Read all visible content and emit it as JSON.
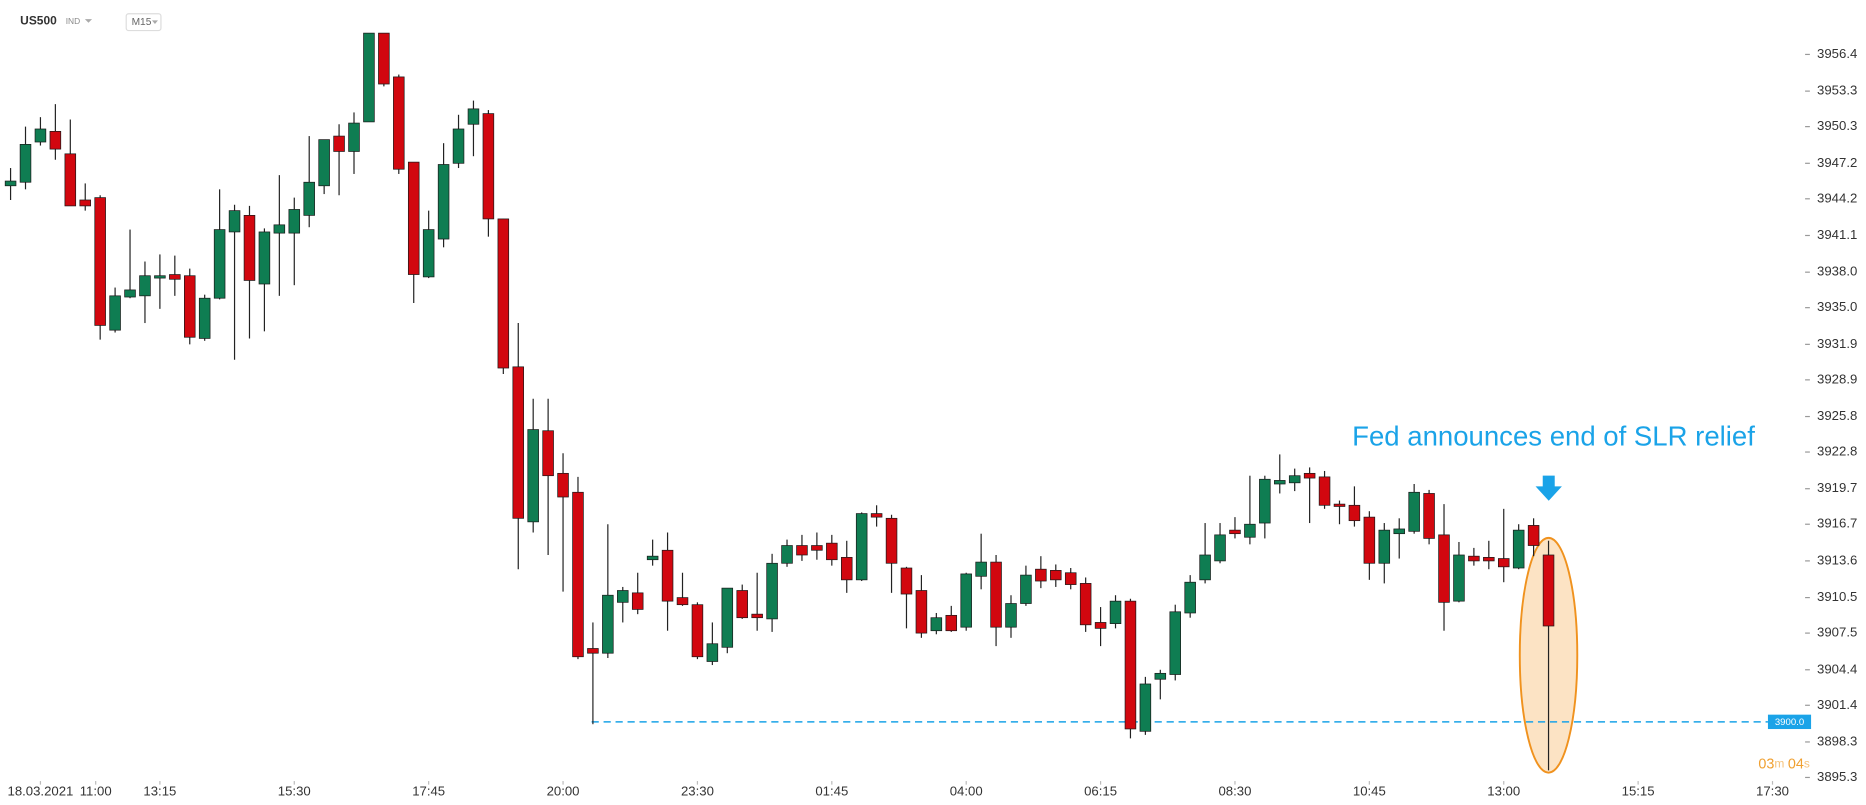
{
  "header": {
    "symbol": "US500",
    "market": "IND",
    "timeframe": "M15"
  },
  "chart_data": {
    "type": "candlestick",
    "annotation": "Fed announces end of SLR relief",
    "up_color": "#0f7d52",
    "down_color": "#d2070f",
    "open": [
      3945.3,
      3945.6,
      3949.0,
      3949.9,
      3948.0,
      3944.1,
      3944.3,
      3933.1,
      3935.9,
      3936.0,
      3937.5,
      3937.8,
      3937.7,
      3932.4,
      3935.8,
      3941.4,
      3942.8,
      3937.0,
      3941.3,
      3941.3,
      3942.8,
      3945.3,
      3949.5,
      3948.2,
      3950.7,
      3958.2,
      3954.5,
      3947.3,
      3937.6,
      3940.8,
      3947.2,
      3950.5,
      3951.4,
      3942.5,
      3930.0,
      3916.9,
      3924.6,
      3921.0,
      3919.4,
      3906.2,
      3905.8,
      3910.1,
      3910.9,
      3913.7,
      3914.5,
      3910.5,
      3909.9,
      3905.1,
      3906.3,
      3911.1,
      3909.1,
      3908.7,
      3913.4,
      3914.9,
      3914.9,
      3915.1,
      3913.9,
      3912.0,
      3917.6,
      3917.2,
      3913.0,
      3911.1,
      3907.7,
      3909.0,
      3908.0,
      3912.3,
      3913.5,
      3908.0,
      3910.0,
      3912.9,
      3912.8,
      3912.6,
      3911.7,
      3908.4,
      3908.3,
      3910.2,
      3899.2,
      3903.6,
      3904.0,
      3909.2,
      3912.0,
      3913.6,
      3916.2,
      3915.6,
      3916.8,
      3920.1,
      3920.2,
      3921.0,
      3920.7,
      3918.4,
      3918.3,
      3917.3,
      3913.4,
      3915.9,
      3916.1,
      3919.3,
      3915.8,
      3910.2,
      3914.0,
      3913.9,
      3913.8,
      3913.0,
      3916.6,
      3914.1
    ],
    "high": [
      3946.8,
      3950.3,
      3951.1,
      3952.2,
      3950.9,
      3945.5,
      3944.5,
      3936.7,
      3941.6,
      3938.9,
      3939.5,
      3939.4,
      3938.3,
      3936.1,
      3945.0,
      3943.7,
      3943.6,
      3941.7,
      3946.2,
      3944.3,
      3949.5,
      3949.2,
      3950.5,
      3951.5,
      3958.2,
      3958.2,
      3954.7,
      3947.3,
      3943.2,
      3948.9,
      3951.3,
      3952.5,
      3951.7,
      3942.5,
      3933.7,
      3927.3,
      3927.3,
      3922.7,
      3920.7,
      3908.4,
      3916.7,
      3911.4,
      3912.6,
      3915.4,
      3916.0,
      3912.6,
      3910.1,
      3908.4,
      3911.3,
      3911.6,
      3912.6,
      3914.2,
      3915.4,
      3915.8,
      3916.0,
      3915.8,
      3915.3,
      3917.7,
      3918.3,
      3917.5,
      3913.1,
      3912.4,
      3909.2,
      3909.8,
      3912.6,
      3915.9,
      3914.1,
      3910.7,
      3913.2,
      3914.0,
      3913.3,
      3913.0,
      3912.2,
      3909.7,
      3910.7,
      3910.4,
      3903.8,
      3904.4,
      3909.9,
      3912.4,
      3916.8,
      3916.8,
      3917.3,
      3920.8,
      3920.8,
      3922.6,
      3921.4,
      3921.5,
      3921.2,
      3918.7,
      3919.9,
      3917.8,
      3916.8,
      3917.2,
      3920.1,
      3919.6,
      3918.4,
      3915.2,
      3914.7,
      3915.3,
      3918.0,
      3916.7,
      3917.2,
      3915.3
    ],
    "low": [
      3944.1,
      3945.0,
      3948.7,
      3947.5,
      3943.6,
      3943.2,
      3932.3,
      3932.9,
      3935.8,
      3933.7,
      3934.9,
      3936.0,
      3931.9,
      3932.2,
      3935.7,
      3930.6,
      3932.4,
      3933.0,
      3936.0,
      3936.9,
      3941.8,
      3944.6,
      3944.5,
      3946.3,
      3950.7,
      3953.7,
      3946.3,
      3935.4,
      3937.5,
      3940.1,
      3946.8,
      3947.8,
      3941.0,
      3929.4,
      3912.9,
      3916.0,
      3914.1,
      3911.0,
      3905.3,
      3899.8,
      3905.4,
      3908.4,
      3909.1,
      3913.2,
      3907.7,
      3909.8,
      3905.3,
      3904.8,
      3905.8,
      3908.7,
      3907.7,
      3907.6,
      3913.1,
      3913.6,
      3913.7,
      3913.2,
      3910.9,
      3911.9,
      3916.5,
      3910.9,
      3907.9,
      3907.1,
      3907.4,
      3907.6,
      3907.7,
      3911.2,
      3906.4,
      3907.1,
      3909.8,
      3911.3,
      3911.4,
      3911.2,
      3907.6,
      3906.4,
      3907.9,
      3898.6,
      3898.9,
      3901.9,
      3903.5,
      3908.8,
      3911.7,
      3913.4,
      3915.5,
      3915.0,
      3915.5,
      3919.3,
      3919.5,
      3916.8,
      3918.0,
      3916.7,
      3916.5,
      3912.0,
      3911.7,
      3913.8,
      3915.9,
      3915.0,
      3907.7,
      3910.1,
      3913.2,
      3912.9,
      3911.8,
      3912.9,
      3914.0,
      3895.9
    ],
    "close": [
      3945.7,
      3948.8,
      3950.1,
      3948.4,
      3943.6,
      3943.6,
      3933.5,
      3936.0,
      3936.5,
      3937.7,
      3937.7,
      3937.4,
      3932.5,
      3935.8,
      3941.6,
      3943.2,
      3937.3,
      3941.4,
      3942.0,
      3943.3,
      3945.6,
      3949.2,
      3948.2,
      3950.6,
      3958.2,
      3953.9,
      3946.7,
      3937.8,
      3941.6,
      3947.1,
      3950.1,
      3951.8,
      3942.5,
      3929.9,
      3917.2,
      3924.7,
      3920.8,
      3919.0,
      3905.5,
      3905.8,
      3910.7,
      3911.1,
      3909.5,
      3914.0,
      3910.2,
      3909.9,
      3905.5,
      3906.6,
      3911.3,
      3908.8,
      3908.8,
      3913.4,
      3914.9,
      3914.1,
      3914.5,
      3913.7,
      3912.0,
      3917.6,
      3917.3,
      3913.4,
      3910.8,
      3907.5,
      3908.8,
      3907.7,
      3912.5,
      3913.5,
      3908.0,
      3910.0,
      3912.4,
      3911.9,
      3912.0,
      3911.6,
      3908.2,
      3907.9,
      3910.2,
      3899.4,
      3903.2,
      3904.1,
      3909.3,
      3911.8,
      3914.1,
      3915.8,
      3915.9,
      3916.7,
      3920.5,
      3920.4,
      3920.8,
      3920.6,
      3918.3,
      3918.2,
      3917.0,
      3913.4,
      3916.2,
      3916.3,
      3919.4,
      3915.5,
      3910.1,
      3914.1,
      3913.6,
      3913.6,
      3913.1,
      3916.2,
      3914.9,
      3908.1
    ],
    "xlim": [
      -0.64,
      119.7
    ],
    "xticks": [
      {
        "value": 2,
        "label": "18.03.2021"
      },
      {
        "value": 5.7,
        "label": "11:00"
      },
      {
        "value": 10,
        "label": "13:15"
      },
      {
        "value": 19,
        "label": "15:30"
      },
      {
        "value": 28,
        "label": "17:45"
      },
      {
        "value": 37,
        "label": "20:00"
      },
      {
        "value": 46,
        "label": "23:30"
      },
      {
        "value": 55,
        "label": "01:45"
      },
      {
        "value": 64,
        "label": "04:00"
      },
      {
        "value": 73,
        "label": "06:15"
      },
      {
        "value": 82,
        "label": "08:30"
      },
      {
        "value": 91,
        "label": "10:45"
      },
      {
        "value": 100,
        "label": "13:00"
      },
      {
        "value": 109,
        "label": "15:15"
      },
      {
        "value": 118,
        "label": "17:30"
      }
    ],
    "ylim": [
      3895.2,
      3961.0
    ],
    "yticks": [
      3956.4,
      3953.3,
      3950.3,
      3947.2,
      3944.2,
      3941.1,
      {
        "value": 3938,
        "label": "3938.0"
      },
      {
        "value": 3935,
        "label": "3935.0"
      },
      3931.9,
      3928.9,
      3925.8,
      3922.8,
      3919.7,
      3916.7,
      3913.6,
      3910.5,
      3907.5,
      3904.4,
      3901.4,
      3898.3,
      3895.3
    ],
    "level": {
      "value": 3900,
      "label": "3900.0"
    },
    "countdown": [
      "03",
      "m",
      "04",
      "s"
    ]
  }
}
